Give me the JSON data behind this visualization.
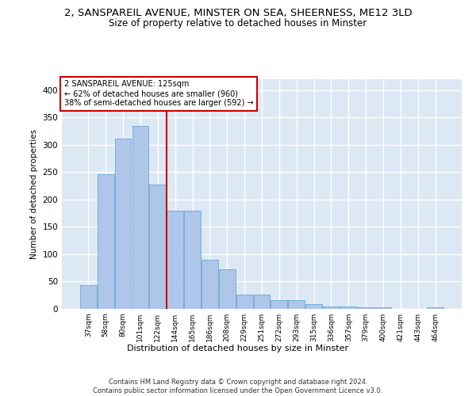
{
  "title1": "2, SANSPAREIL AVENUE, MINSTER ON SEA, SHEERNESS, ME12 3LD",
  "title2": "Size of property relative to detached houses in Minster",
  "xlabel": "Distribution of detached houses by size in Minster",
  "ylabel": "Number of detached properties",
  "categories": [
    "37sqm",
    "58sqm",
    "80sqm",
    "101sqm",
    "122sqm",
    "144sqm",
    "165sqm",
    "186sqm",
    "208sqm",
    "229sqm",
    "251sqm",
    "272sqm",
    "293sqm",
    "315sqm",
    "336sqm",
    "357sqm",
    "379sqm",
    "400sqm",
    "421sqm",
    "443sqm",
    "464sqm"
  ],
  "values": [
    43,
    246,
    312,
    335,
    227,
    180,
    180,
    90,
    73,
    26,
    26,
    16,
    16,
    9,
    4,
    4,
    3,
    3,
    0,
    0,
    3
  ],
  "bar_color": "#aec6e8",
  "bar_edge_color": "#5a9fd4",
  "vline_x": 4.5,
  "marker_label": "2 SANSPAREIL AVENUE: 125sqm",
  "annotation_line1": "← 62% of detached houses are smaller (960)",
  "annotation_line2": "38% of semi-detached houses are larger (592) →",
  "vline_color": "#cc0000",
  "annotation_box_color": "#ffffff",
  "annotation_box_edge": "#cc0000",
  "footer": "Contains HM Land Registry data © Crown copyright and database right 2024.\nContains public sector information licensed under the Open Government Licence v3.0.",
  "ylim": [
    0,
    420
  ],
  "yticks": [
    0,
    50,
    100,
    150,
    200,
    250,
    300,
    350,
    400
  ],
  "bg_color": "#dde8f5",
  "grid_color": "#ffffff",
  "title1_fontsize": 9.5,
  "title2_fontsize": 8.5
}
